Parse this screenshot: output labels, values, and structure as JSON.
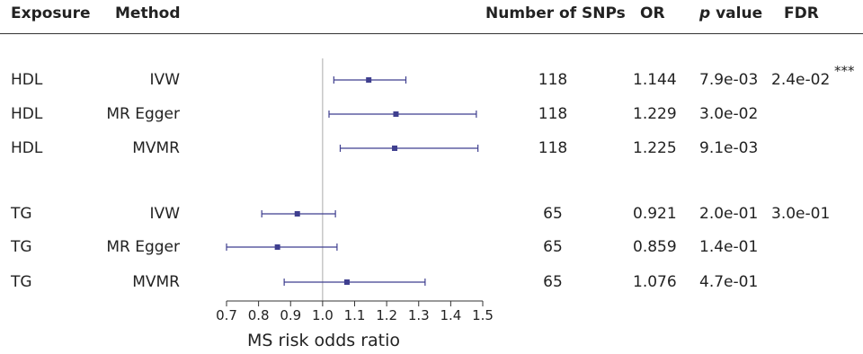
{
  "headers": {
    "exposure": "Exposure",
    "method": "Method",
    "nsnps": "Number of SNPs",
    "or": "OR",
    "p_italic": "p",
    "p_rest": "value",
    "fdr": "FDR"
  },
  "rows": [
    {
      "exposure": "HDL",
      "method": "IVW",
      "nsnps": "118",
      "or": "1.144",
      "p": "7.9e-03",
      "fdr": "2.4e-02",
      "sig": "***"
    },
    {
      "exposure": "HDL",
      "method": "MR Egger",
      "nsnps": "118",
      "or": "1.229",
      "p": "3.0e-02",
      "fdr": "",
      "sig": ""
    },
    {
      "exposure": "HDL",
      "method": "MVMR",
      "nsnps": "118",
      "or": "1.225",
      "p": "9.1e-03",
      "fdr": "",
      "sig": ""
    },
    {
      "exposure": "TG",
      "method": "IVW",
      "nsnps": "65",
      "or": "0.921",
      "p": "2.0e-01",
      "fdr": "3.0e-01",
      "sig": ""
    },
    {
      "exposure": "TG",
      "method": "MR Egger",
      "nsnps": "65",
      "or": "0.859",
      "p": "1.4e-01",
      "fdr": "",
      "sig": ""
    },
    {
      "exposure": "TG",
      "method": "MVMR",
      "nsnps": "65",
      "or": "1.076",
      "p": "4.7e-01",
      "fdr": "",
      "sig": ""
    }
  ],
  "chart_data": {
    "type": "scatter",
    "xlabel": "MS risk odds ratio",
    "xlim": [
      0.7,
      1.5
    ],
    "xticks": [
      "0.7",
      "0.8",
      "0.9",
      "1.0",
      "1.1",
      "1.2",
      "1.3",
      "1.4",
      "1.5"
    ],
    "reference_line": 1.0,
    "points": [
      {
        "label": "HDL IVW",
        "or": 1.144,
        "lower": 1.035,
        "upper": 1.26
      },
      {
        "label": "HDL MR Egger",
        "or": 1.229,
        "lower": 1.02,
        "upper": 1.48
      },
      {
        "label": "HDL MVMR",
        "or": 1.225,
        "lower": 1.055,
        "upper": 1.485
      },
      {
        "label": "TG IVW",
        "or": 0.921,
        "lower": 0.81,
        "upper": 1.04
      },
      {
        "label": "TG MR Egger",
        "or": 0.859,
        "lower": 0.7,
        "upper": 1.045
      },
      {
        "label": "TG MVMR",
        "or": 1.076,
        "lower": 0.88,
        "upper": 1.32
      }
    ],
    "color": "#3f3f8f",
    "grid": false
  }
}
